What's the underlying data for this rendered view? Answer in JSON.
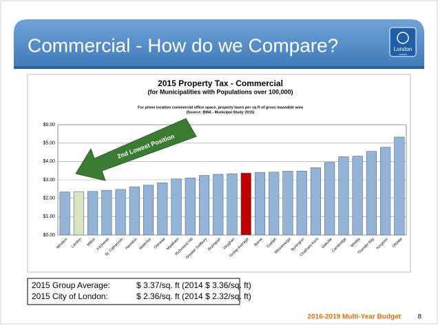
{
  "header": {
    "title": "Commercial - How do we Compare?",
    "logo_text": "London",
    "logo_subtext": "CANADA"
  },
  "chart_data": {
    "type": "bar",
    "title": "2015 Property Tax - Commercial",
    "subtitle": "(for Municipalities with Populations over 100,000)",
    "note": "For prime location commercial office space, property taxes per sq ft of gross leaseable area",
    "source": "(Source: BMA - Municipal Study 2015)",
    "annotation": "2nd Lowest Position",
    "categories": [
      "Windsor",
      "London",
      "Milton",
      "Kitchener",
      "St. Catharines",
      "Hamilton",
      "Waterloo",
      "Oshawa",
      "Markham",
      "Richmond Hill",
      "Greater Sudbury",
      "Brampton",
      "Vaughan",
      "Group Average",
      "Barrie",
      "Guelph",
      "Mississauga",
      "Burlington",
      "Chatham-Kent",
      "Oakville",
      "Cambridge",
      "Whitby",
      "Thunder Bay",
      "Kingston",
      "Ottawa"
    ],
    "values": [
      2.34,
      2.36,
      2.37,
      2.43,
      2.48,
      2.62,
      2.71,
      2.84,
      3.05,
      3.1,
      3.24,
      3.3,
      3.33,
      3.37,
      3.4,
      3.42,
      3.47,
      3.48,
      3.66,
      3.95,
      4.26,
      4.29,
      4.55,
      4.77,
      5.33
    ],
    "colors": [
      "#95b3d7",
      "#d7e4bd",
      "#95b3d7",
      "#95b3d7",
      "#95b3d7",
      "#95b3d7",
      "#95b3d7",
      "#95b3d7",
      "#95b3d7",
      "#95b3d7",
      "#95b3d7",
      "#95b3d7",
      "#95b3d7",
      "#c00000",
      "#95b3d7",
      "#95b3d7",
      "#95b3d7",
      "#95b3d7",
      "#95b3d7",
      "#95b3d7",
      "#95b3d7",
      "#95b3d7",
      "#95b3d7",
      "#95b3d7",
      "#95b3d7"
    ],
    "ylim": [
      0,
      6
    ],
    "yticks": [
      {
        "value": 0,
        "label": "$0.00"
      },
      {
        "value": 1,
        "label": "$1.00"
      },
      {
        "value": 2,
        "label": "$2.00"
      },
      {
        "value": 3,
        "label": "$3.00"
      },
      {
        "value": 4,
        "label": "$4.00"
      },
      {
        "value": 5,
        "label": "$5.00"
      },
      {
        "value": 6,
        "label": "$6.00"
      }
    ],
    "grid": true
  },
  "summary": {
    "rows": [
      [
        "2015 Group Average:",
        "$ 3.37/sq. ft (2014 $ 3.36/sq. ft)"
      ],
      [
        "2015 City of London:",
        "$ 2.36/sq. ft (2014 $ 2.32/sq. ft)"
      ]
    ]
  },
  "footer": {
    "text": "2016-2019 Multi-Year Budget",
    "page": "8"
  }
}
